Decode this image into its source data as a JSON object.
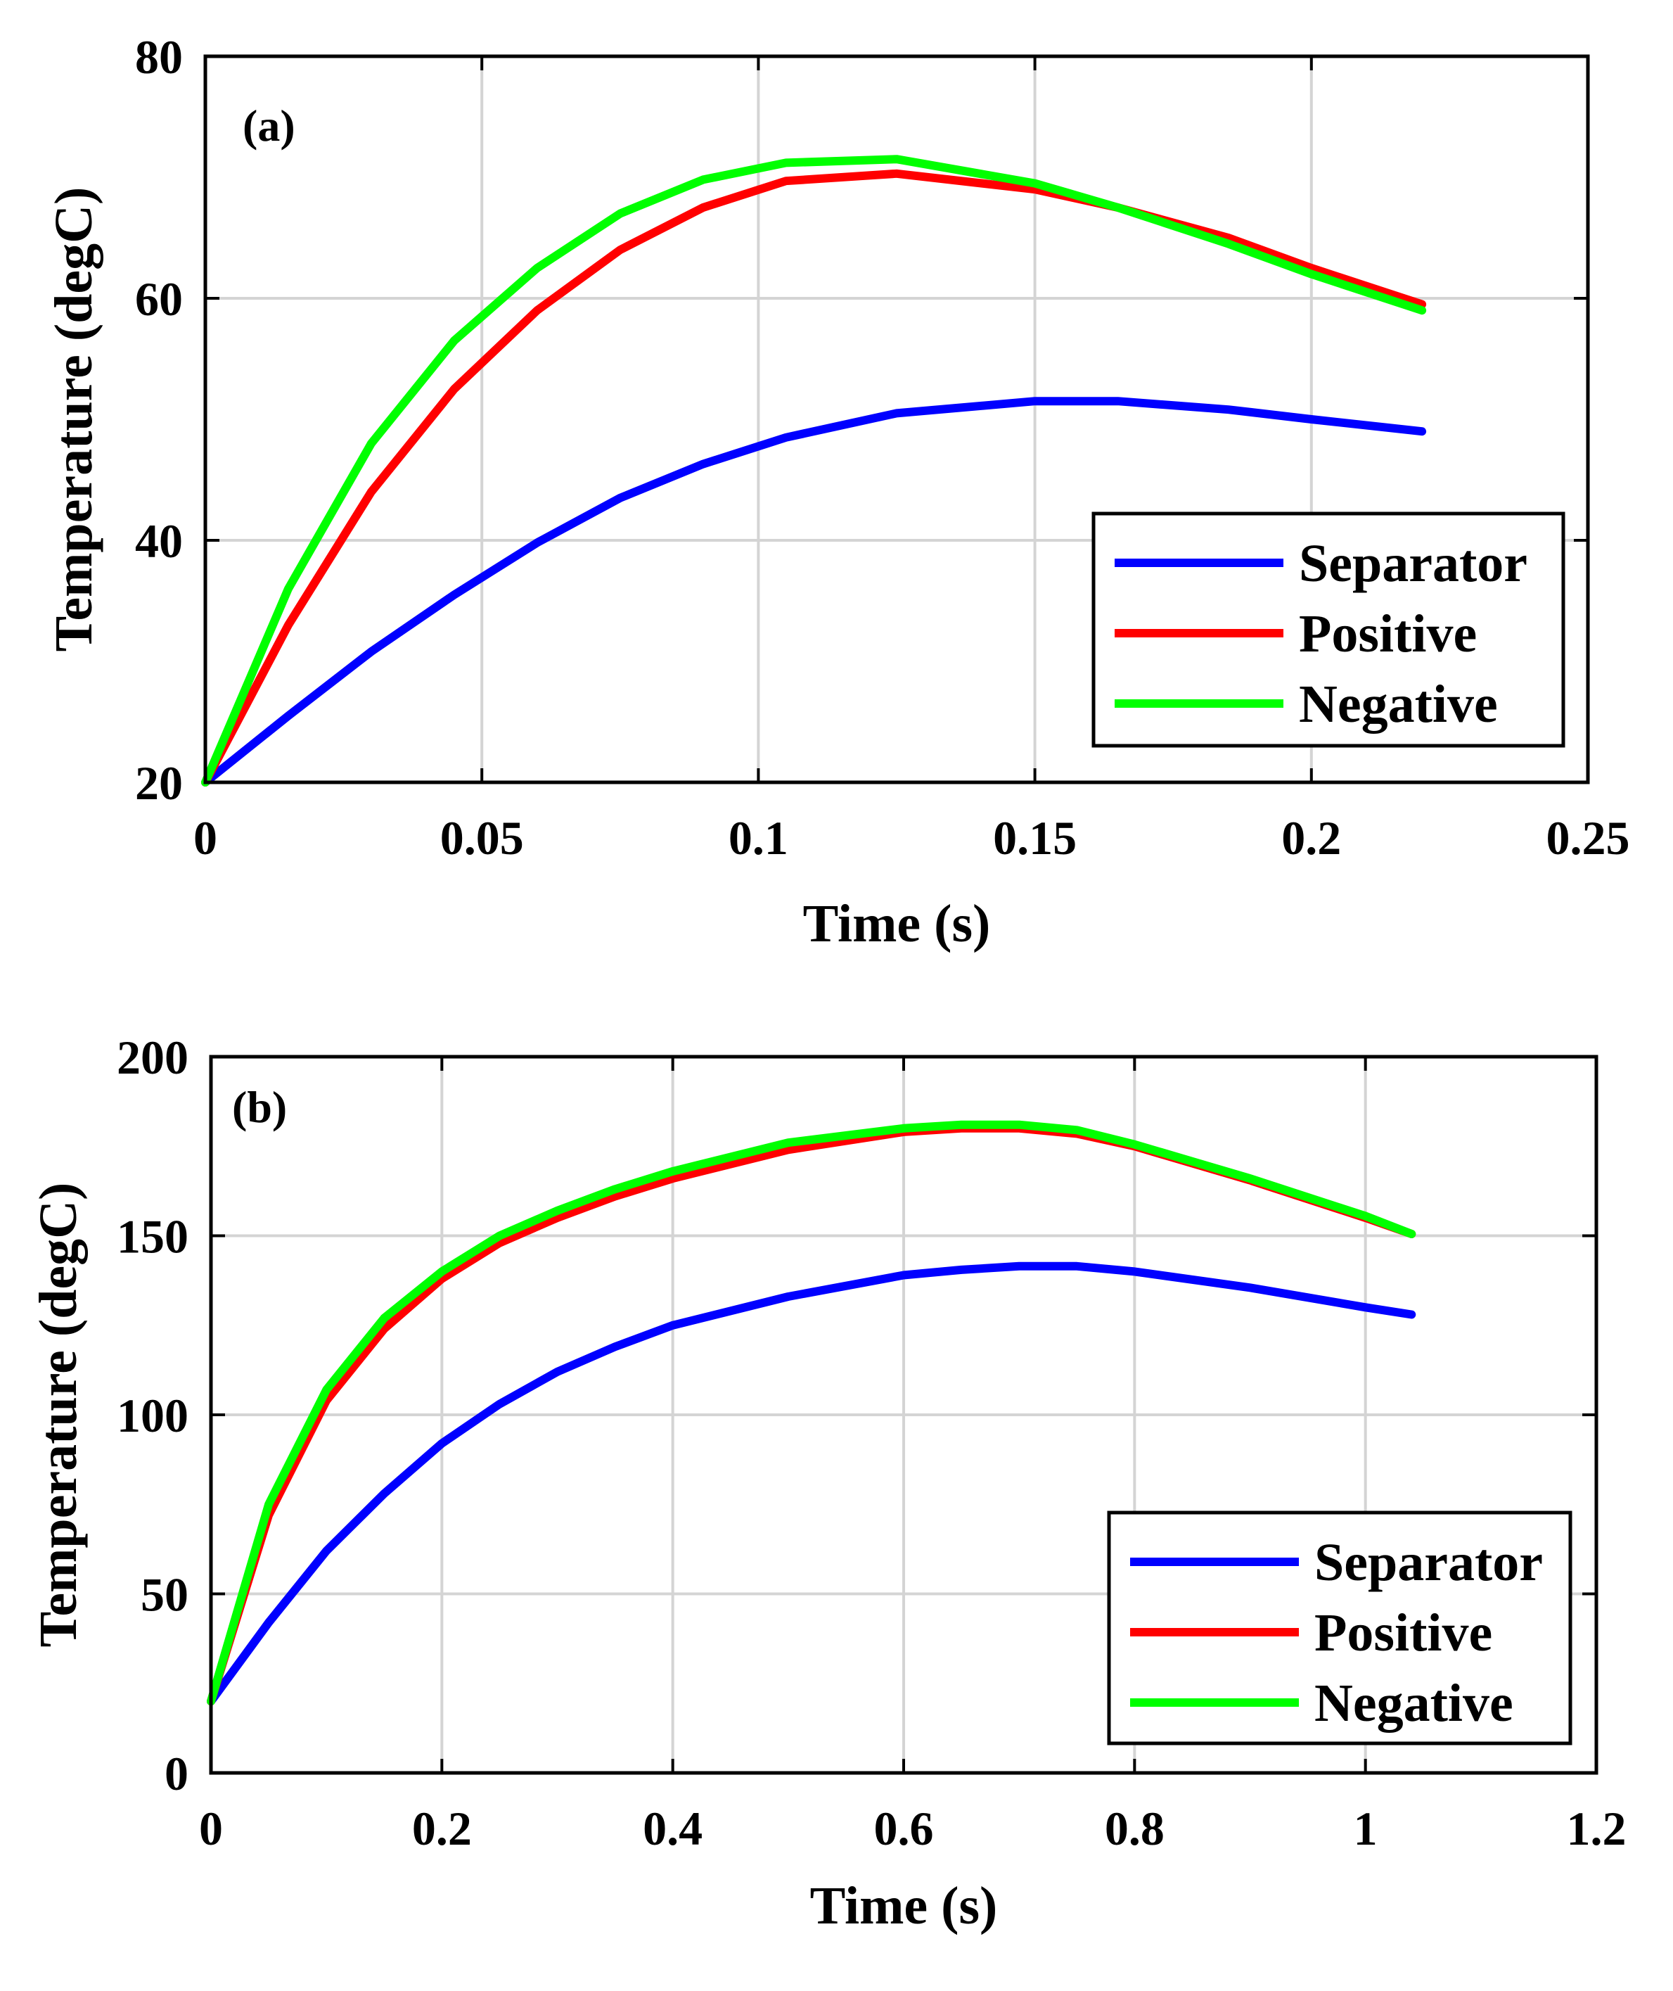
{
  "chart_data": [
    {
      "type": "line",
      "panel_label": "(a)",
      "xlabel": "Time (s)",
      "ylabel": "Temperature (degC)",
      "xlim": [
        0,
        0.25
      ],
      "ylim": [
        20,
        80
      ],
      "xticks": [
        0,
        0.05,
        0.1,
        0.15,
        0.2,
        0.25
      ],
      "xtick_labels": [
        "0",
        "0.05",
        "0.1",
        "0.15",
        "0.2",
        "0.25"
      ],
      "yticks": [
        20,
        40,
        60,
        80
      ],
      "ytick_labels": [
        "20",
        "40",
        "60",
        "80"
      ],
      "grid": true,
      "legend_position": "bottom-right",
      "x": [
        0,
        0.015,
        0.03,
        0.045,
        0.06,
        0.075,
        0.09,
        0.105,
        0.125,
        0.15,
        0.165,
        0.185,
        0.2,
        0.22
      ],
      "series": [
        {
          "name": "Separator",
          "color": "#0000ff",
          "values": [
            20,
            25.5,
            30.8,
            35.5,
            39.8,
            43.5,
            46.3,
            48.5,
            50.5,
            51.5,
            51.5,
            50.8,
            50.0,
            49.0
          ]
        },
        {
          "name": "Positive",
          "color": "#ff0000",
          "values": [
            20,
            33.0,
            44.0,
            52.5,
            59.0,
            64.0,
            67.5,
            69.7,
            70.3,
            69.0,
            67.5,
            65.0,
            62.5,
            59.5
          ]
        },
        {
          "name": "Negative",
          "color": "#00ff00",
          "values": [
            20,
            36.0,
            48.0,
            56.5,
            62.5,
            67.0,
            69.8,
            71.2,
            71.5,
            69.5,
            67.5,
            64.5,
            62.0,
            59.0
          ]
        }
      ]
    },
    {
      "type": "line",
      "panel_label": "(b)",
      "xlabel": "Time (s)",
      "ylabel": "Temperature (degC)",
      "xlim": [
        0,
        1.2
      ],
      "ylim": [
        0,
        200
      ],
      "xticks": [
        0,
        0.2,
        0.4,
        0.6,
        0.8,
        1,
        1.2
      ],
      "xtick_labels": [
        "0",
        "0.2",
        "0.4",
        "0.6",
        "0.8",
        "1",
        "1.2"
      ],
      "yticks": [
        0,
        50,
        100,
        150,
        200
      ],
      "ytick_labels": [
        "0",
        "50",
        "100",
        "150",
        "200"
      ],
      "grid": true,
      "legend_position": "bottom-right",
      "x": [
        0,
        0.05,
        0.1,
        0.15,
        0.2,
        0.25,
        0.3,
        0.35,
        0.4,
        0.5,
        0.6,
        0.65,
        0.7,
        0.75,
        0.8,
        0.9,
        1.0,
        1.04
      ],
      "series": [
        {
          "name": "Separator",
          "color": "#0000ff",
          "values": [
            20,
            42,
            62,
            78,
            92,
            103,
            112,
            119,
            125,
            133,
            139,
            140.5,
            141.5,
            141.5,
            140,
            135.5,
            130,
            128
          ]
        },
        {
          "name": "Positive",
          "color": "#ff0000",
          "values": [
            20,
            72,
            104,
            124,
            138,
            148,
            155,
            161,
            166,
            174,
            179,
            180,
            180,
            178.5,
            175,
            165.5,
            155,
            150.5
          ]
        },
        {
          "name": "Negative",
          "color": "#00ff00",
          "values": [
            20,
            75,
            107,
            127,
            140,
            150,
            157,
            163,
            168,
            176,
            180,
            181,
            181,
            179.5,
            175.5,
            166,
            155.5,
            150.5
          ]
        }
      ]
    }
  ]
}
